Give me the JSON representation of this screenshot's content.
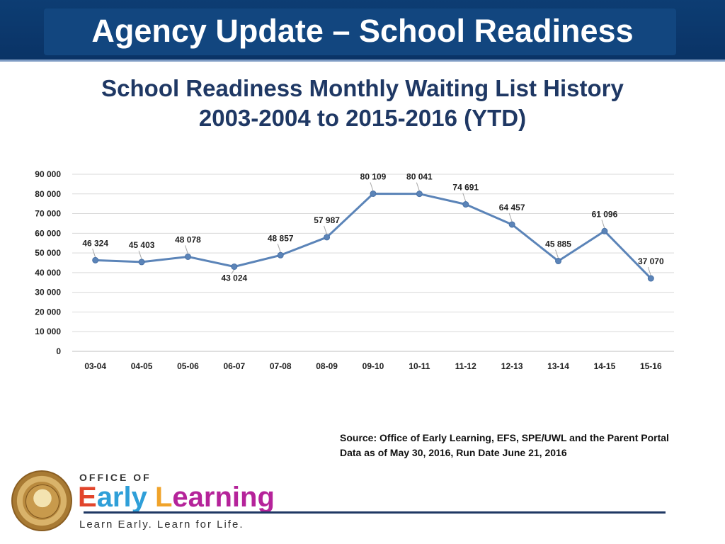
{
  "slide": {
    "title": "Agency Update – School Readiness"
  },
  "chart_data": {
    "type": "line",
    "title_lines": [
      "School Readiness Monthly Waiting List History",
      "2003-2004 to 2015-2016 (YTD)"
    ],
    "xlabel": "",
    "ylabel": "",
    "categories": [
      "03-04",
      "04-05",
      "05-06",
      "06-07",
      "07-08",
      "08-09",
      "09-10",
      "10-11",
      "11-12",
      "12-13",
      "13-14",
      "14-15",
      "15-16"
    ],
    "series": [
      {
        "values": [
          46324,
          45403,
          48078,
          43024,
          48857,
          57987,
          80109,
          80041,
          74691,
          64457,
          45885,
          61096,
          37070
        ],
        "data_labels": [
          "46 324",
          "45 403",
          "48 078",
          "43 024",
          "48 857",
          "57 987",
          "80 109",
          "80 041",
          "74 691",
          "64 457",
          "45 885",
          "61 096",
          "37 070"
        ],
        "color": "#5b84b8"
      }
    ],
    "ylim": [
      0,
      90000
    ],
    "y_ticks": [
      0,
      10000,
      20000,
      30000,
      40000,
      50000,
      60000,
      70000,
      80000,
      90000
    ],
    "y_tick_labels": [
      "0",
      "10 000",
      "20 000",
      "30 000",
      "40 000",
      "50 000",
      "60 000",
      "70 000",
      "80 000",
      "90 000"
    ],
    "grid": true,
    "legend": "none"
  },
  "source": {
    "line1": "Source: Office of Early Learning, EFS, SPE/UWL and the Parent Portal",
    "line2": "Data as of  May 30, 2016, Run Date June 21, 2016"
  },
  "logo": {
    "office_of": "OFFICE OF",
    "brand_e": "E",
    "brand_arly": "arly ",
    "brand_l": "L",
    "brand_earning": "earning",
    "tagline": "Learn Early. Learn for Life."
  },
  "colors": {
    "header_bg": "#0a3366",
    "title_text": "#1f3864",
    "line": "#5b84b8",
    "grid": "#d9d9d9"
  }
}
